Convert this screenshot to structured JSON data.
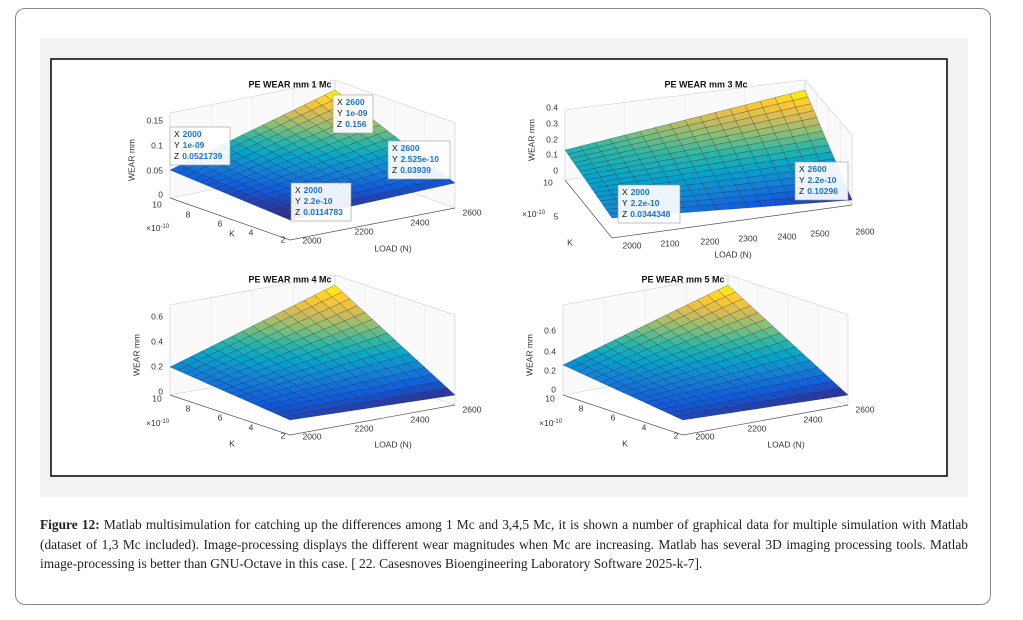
{
  "figure": {
    "plots": [
      {
        "title": "PE WEAR mm 1 Mc",
        "zlabel": "WEAR mm",
        "xlabel": "LOAD (N)",
        "ylabel": "K",
        "exponent": {
          "base": "×10",
          "power": "-10"
        },
        "zticks": [
          "0.15",
          "0.1",
          "0.05",
          "0"
        ],
        "yticks": [
          "10",
          "8",
          "6",
          "4",
          "2"
        ],
        "xticks": [
          "2000",
          "2200",
          "2400",
          "2600"
        ],
        "datatips": [
          [
            {
              "key": "X",
              "value": "2000"
            },
            {
              "key": "Y",
              "value": "1e-09"
            },
            {
              "key": "Z",
              "value": "0.0521739"
            }
          ],
          [
            {
              "key": "X",
              "value": "2600"
            },
            {
              "key": "Y",
              "value": "1e-09"
            },
            {
              "key": "Z",
              "value": "0.156"
            }
          ],
          [
            {
              "key": "X",
              "value": "2600"
            },
            {
              "key": "Y",
              "value": "2.525e-10"
            },
            {
              "key": "Z",
              "value": "0.03939"
            }
          ],
          [
            {
              "key": "X",
              "value": "2000"
            },
            {
              "key": "Y",
              "value": "2.2e-10"
            },
            {
              "key": "Z",
              "value": "0.0114783"
            }
          ]
        ]
      },
      {
        "title": "PE WEAR mm 3 Mc",
        "zlabel": "WEAR mm",
        "xlabel": "LOAD (N)",
        "ylabel": "K",
        "exponent": {
          "base": "×10",
          "power": "-10"
        },
        "zticks": [
          "0.4",
          "0.3",
          "0.2",
          "0.1",
          "0"
        ],
        "yticks": [
          "10",
          "5"
        ],
        "xticks": [
          "2000",
          "2100",
          "2200",
          "2300",
          "2400",
          "2500",
          "2600"
        ],
        "datatips": [
          [
            {
              "key": "X",
              "value": "2000"
            },
            {
              "key": "Y",
              "value": "2.2e-10"
            },
            {
              "key": "Z",
              "value": "0.0344348"
            }
          ],
          [
            {
              "key": "X",
              "value": "2600"
            },
            {
              "key": "Y",
              "value": "2.2e-10"
            },
            {
              "key": "Z",
              "value": "0.10296"
            }
          ]
        ]
      },
      {
        "title": "PE WEAR mm 4 Mc",
        "zlabel": "WEAR mm",
        "xlabel": "LOAD (N)",
        "ylabel": "K",
        "exponent": {
          "base": "×10",
          "power": "-10"
        },
        "zticks": [
          "0.6",
          "0.4",
          "0.2",
          "0"
        ],
        "yticks": [
          "10",
          "8",
          "6",
          "4",
          "2"
        ],
        "xticks": [
          "2000",
          "2200",
          "2400",
          "2600"
        ],
        "datatips": []
      },
      {
        "title": "PE WEAR mm 5 Mc",
        "zlabel": "WEAR mm",
        "xlabel": "LOAD (N)",
        "ylabel": "K",
        "exponent": {
          "base": "×10",
          "power": "-10"
        },
        "zticks": [
          "0.6",
          "0.4",
          "0.2",
          "0"
        ],
        "yticks": [
          "10",
          "8",
          "6",
          "4",
          "2"
        ],
        "xticks": [
          "2000",
          "2200",
          "2400",
          "2600"
        ],
        "datatips": []
      }
    ],
    "caption": {
      "label": "Figure 12:",
      "text": "Matlab multisimulation for catching up the differences among 1 Mc and 3,4,5 Mc, it is shown a number of graphical data for multiple simulation with Matlab (dataset of 1,3 Mc included). Image-processing displays the different wear magnitudes when Mc are increasing. Matlab has several 3D imaging processing tools. Matlab image-processing is better than GNU-Octave in this case. [ 22. Casesnoves Bioengineering Laboratory Software 2025-k-7]."
    }
  }
}
